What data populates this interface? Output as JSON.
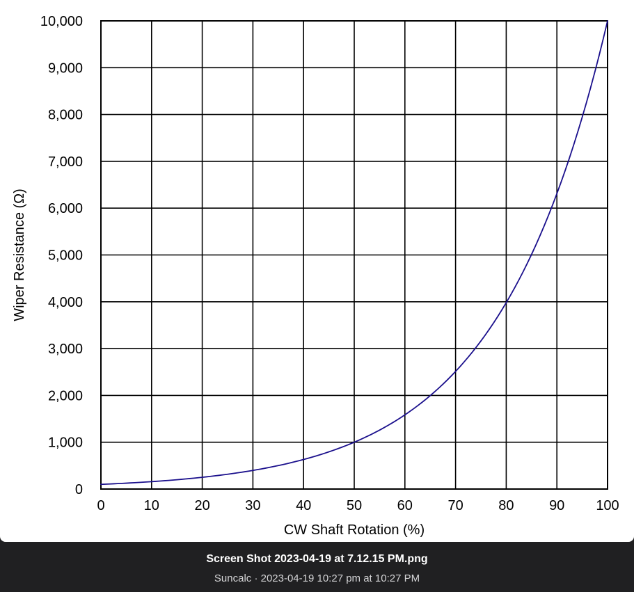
{
  "chart_data": {
    "type": "line",
    "title": "",
    "xlabel": "CW Shaft Rotation (%)",
    "ylabel": "Wiper Resistance (Ω)",
    "xlim": [
      0,
      100
    ],
    "ylim": [
      0,
      10000
    ],
    "x_ticks": [
      "0",
      "10",
      "20",
      "30",
      "40",
      "50",
      "60",
      "70",
      "80",
      "90",
      "100"
    ],
    "y_ticks": [
      "0",
      "1,000",
      "2,000",
      "3,000",
      "4,000",
      "5,000",
      "6,000",
      "7,000",
      "8,000",
      "9,000",
      "10,000"
    ],
    "grid": true,
    "series": [
      {
        "color": "#1a0f8c",
        "x": [
          0,
          10,
          20,
          30,
          40,
          50,
          60,
          70,
          80,
          90,
          100
        ],
        "y": [
          100,
          158,
          251,
          398,
          631,
          1000,
          1585,
          2512,
          3981,
          6310,
          10000
        ]
      }
    ]
  },
  "caption": {
    "file_name": "Screen Shot 2023-04-19 at 7.12.15 PM.png",
    "details": "Suncalc · 2023-04-19 10:27 pm at 10:27 PM"
  }
}
